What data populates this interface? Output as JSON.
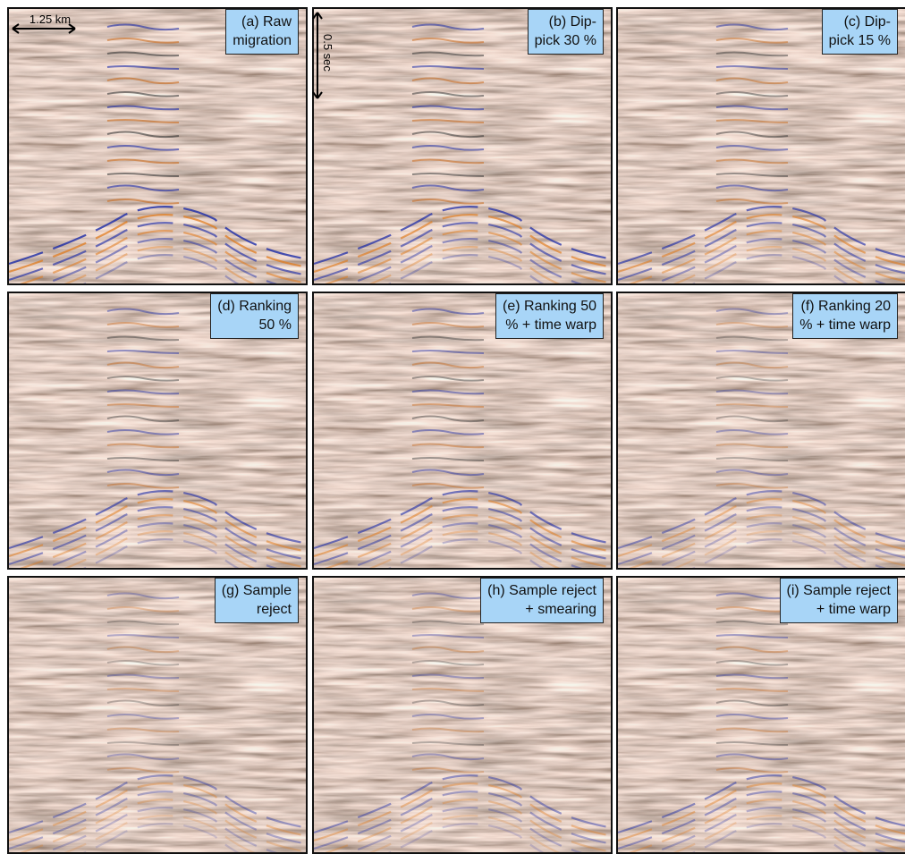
{
  "panels": [
    {
      "label": [
        "(a) Raw",
        "migration"
      ]
    },
    {
      "label": [
        "(b) Dip-",
        "pick 30 %"
      ]
    },
    {
      "label": [
        "(c) Dip-",
        "pick 15 %"
      ]
    },
    {
      "label": [
        "(d) Ranking",
        "50 %"
      ]
    },
    {
      "label": [
        "(e) Ranking 50",
        "% + time warp"
      ]
    },
    {
      "label": [
        "(f) Ranking 20",
        "% + time warp"
      ]
    },
    {
      "label": [
        "(g) Sample",
        "reject"
      ]
    },
    {
      "label": [
        "(h) Sample reject",
        "+ smearing"
      ]
    },
    {
      "label": [
        "(i) Sample reject",
        "+ time warp"
      ]
    }
  ],
  "scale_bars": {
    "horizontal": "1.25 km",
    "vertical": "0.5 sec"
  }
}
